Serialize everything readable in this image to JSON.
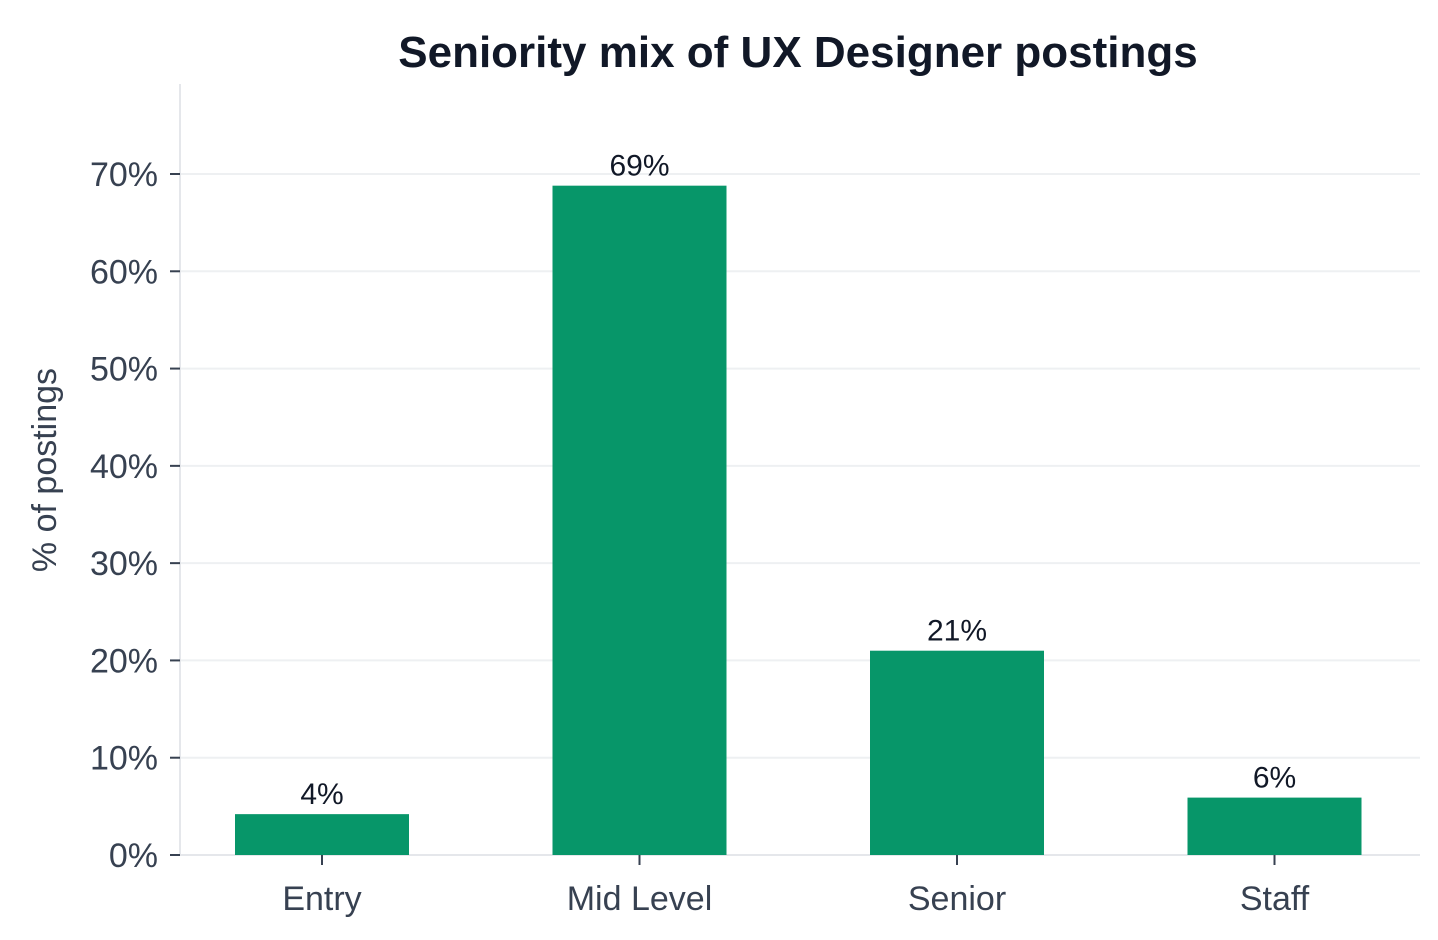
{
  "chart_data": {
    "type": "bar",
    "title": "Seniority mix of UX Designer postings",
    "xlabel": "",
    "ylabel": "% of postings",
    "categories": [
      "Entry",
      "Mid Level",
      "Senior",
      "Staff"
    ],
    "values": [
      4.2,
      68.8,
      21.0,
      5.9
    ],
    "value_labels": [
      "4%",
      "69%",
      "21%",
      "6%"
    ],
    "ylim": [
      0,
      78
    ],
    "y_ticks": [
      0,
      10,
      20,
      30,
      40,
      50,
      60,
      70
    ],
    "y_tick_labels": [
      "0%",
      "10%",
      "20%",
      "30%",
      "40%",
      "50%",
      "60%",
      "70%"
    ],
    "grid": true,
    "bar_color": "#079669",
    "legend": "none"
  }
}
